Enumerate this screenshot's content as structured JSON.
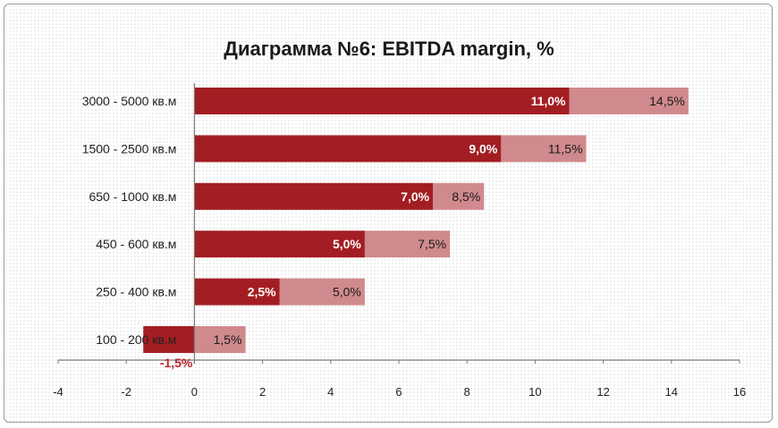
{
  "chart_data": {
    "type": "bar",
    "orientation": "horizontal",
    "title": "Диаграмма №6: EBITDA margin, %",
    "xlabel": "",
    "ylabel": "",
    "xlim": [
      -4,
      16
    ],
    "x_ticks": [
      -4,
      -2,
      0,
      2,
      4,
      6,
      8,
      10,
      12,
      14,
      16
    ],
    "grid": false,
    "legend": "none",
    "categories": [
      "3000 - 5000 кв.м",
      "1500 - 2500 кв.м",
      "650 - 1000 кв.м",
      "450 - 600 кв.м",
      "250 - 400 кв.м",
      "100 - 200 кв.м"
    ],
    "series": [
      {
        "values": [
          11.0,
          9.0,
          7.0,
          5.0,
          2.5,
          -1.5
        ],
        "labels": [
          "11,0%",
          "9,0%",
          "7,0%",
          "5,0%",
          "2,5%",
          "-1,5%"
        ],
        "color": "#a31e22"
      },
      {
        "values": [
          14.5,
          11.5,
          8.5,
          7.5,
          5.0,
          1.5
        ],
        "labels": [
          "14,5%",
          "11,5%",
          "8,5%",
          "7,5%",
          "5,0%",
          "1,5%"
        ],
        "color": "#d08a8d"
      }
    ],
    "negative_label_color": "#c0252e"
  }
}
